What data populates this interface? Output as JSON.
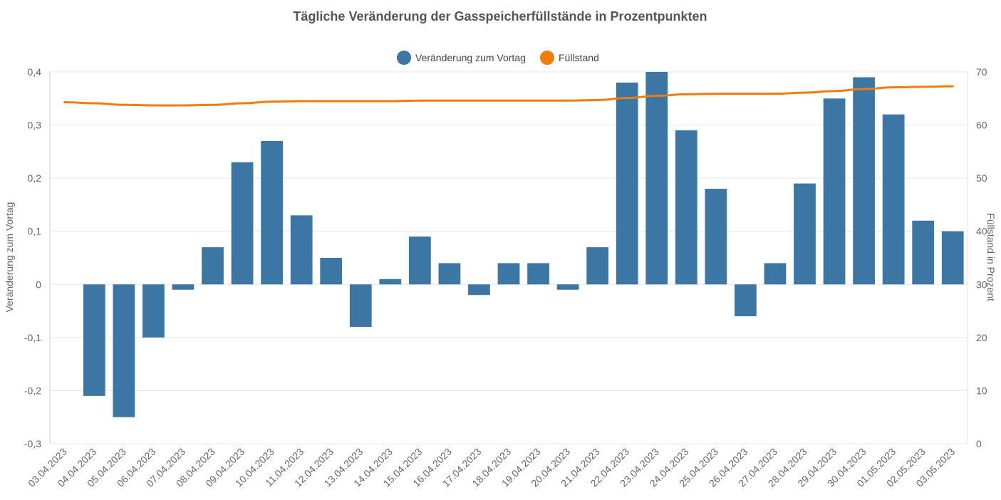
{
  "chart_data": {
    "type": "bar",
    "title": "Tägliche Veränderung der Gasspeicherfüllstände in Prozentpunkten",
    "categories": [
      "03.04.2023",
      "04.04.2023",
      "05.04.2023",
      "06.04.2023",
      "07.04.2023",
      "08.04.2023",
      "09.04.2023",
      "10.04.2023",
      "11.04.2023",
      "12.04.2023",
      "13.04.2023",
      "14.04.2023",
      "15.04.2023",
      "16.04.2023",
      "17.04.2023",
      "18.04.2023",
      "19.04.2023",
      "20.04.2023",
      "21.04.2023",
      "22.04.2023",
      "23.04.2023",
      "24.04.2023",
      "25.04.2023",
      "26.04.2023",
      "27.04.2023",
      "28.04.2023",
      "29.04.2023",
      "30.04.2023",
      "01.05.2023",
      "02.05.2023",
      "03.05.2023"
    ],
    "series": [
      {
        "name": "Veränderung zum Vortag",
        "type": "bar",
        "axis": "left",
        "color": "#3b76a4",
        "values": [
          0,
          -0.21,
          -0.25,
          -0.1,
          -0.01,
          0.07,
          0.23,
          0.27,
          0.13,
          0.05,
          -0.08,
          0.01,
          0.09,
          0.04,
          -0.02,
          0.04,
          0.04,
          -0.01,
          0.07,
          0.38,
          0.4,
          0.29,
          0.18,
          -0.06,
          0.04,
          0.19,
          0.35,
          0.39,
          0.32,
          0.12,
          0.1
        ]
      },
      {
        "name": "Füllstand",
        "type": "line",
        "axis": "right",
        "color": "#ef7d0b",
        "values": [
          64.3,
          64.1,
          63.8,
          63.7,
          63.7,
          63.8,
          64.1,
          64.4,
          64.5,
          64.5,
          64.5,
          64.5,
          64.6,
          64.6,
          64.6,
          64.6,
          64.6,
          64.6,
          64.7,
          65.1,
          65.5,
          65.8,
          65.9,
          65.9,
          65.9,
          66.1,
          66.4,
          66.8,
          67.1,
          67.2,
          67.3
        ]
      }
    ],
    "ylabel": "Veränderung zum Vortag",
    "ylabel_right": "Füllstand in Prozent",
    "ylim": [
      -0.3,
      0.4
    ],
    "y_ticks": [
      "0,4",
      "0,3",
      "0,2",
      "0,1",
      "0",
      "-0,1",
      "-0,2",
      "-0,3"
    ],
    "ylim_right": [
      0,
      70
    ],
    "y_ticks_right": [
      "70",
      "60",
      "50",
      "40",
      "30",
      "20",
      "10",
      "0"
    ],
    "grid": true,
    "legend_position": "top-center"
  }
}
